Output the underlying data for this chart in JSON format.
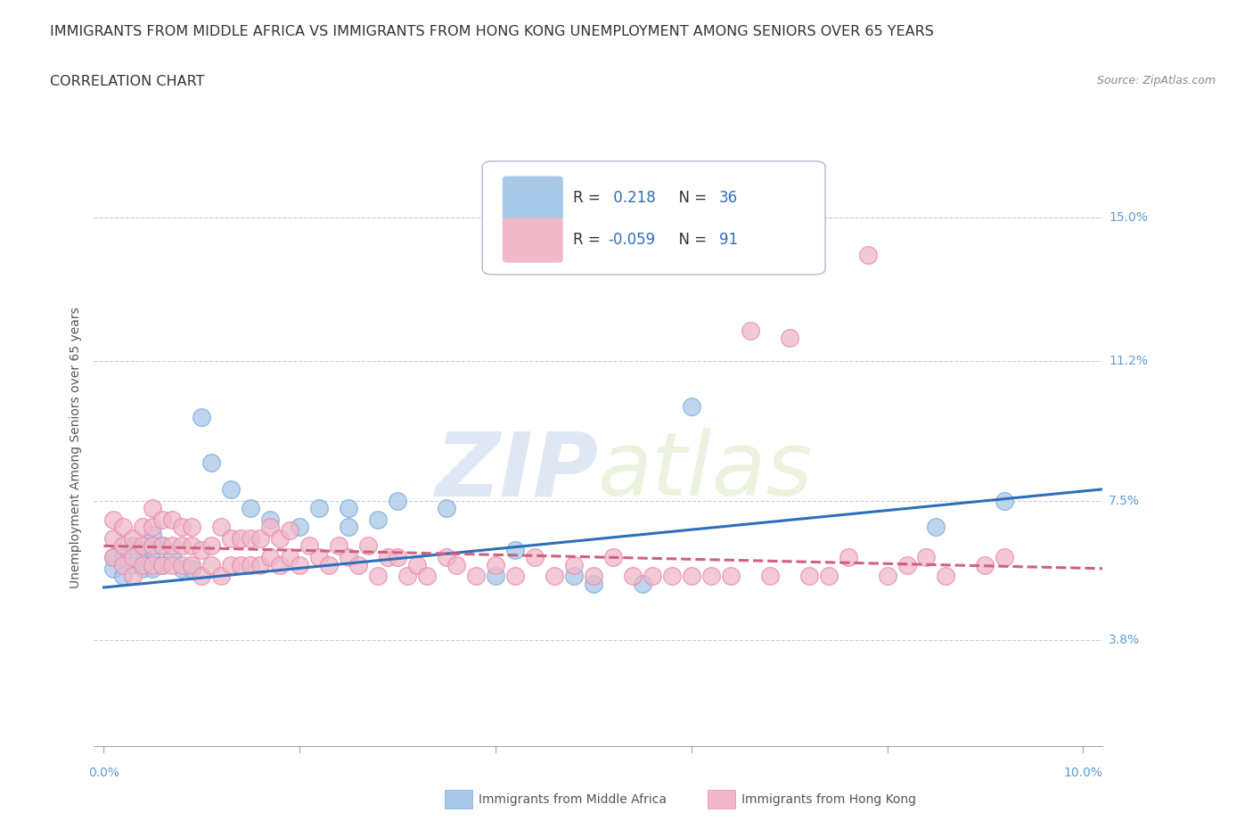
{
  "title_line1": "IMMIGRANTS FROM MIDDLE AFRICA VS IMMIGRANTS FROM HONG KONG UNEMPLOYMENT AMONG SENIORS OVER 65 YEARS",
  "title_line2": "CORRELATION CHART",
  "source_text": "Source: ZipAtlas.com",
  "ylabel": "Unemployment Among Seniors over 65 years",
  "xlim": [
    -0.001,
    0.102
  ],
  "ylim": [
    0.01,
    0.168
  ],
  "yticks": [
    0.038,
    0.075,
    0.112,
    0.15
  ],
  "ytick_labels": [
    "3.8%",
    "7.5%",
    "11.2%",
    "15.0%"
  ],
  "xticks": [
    0.0,
    0.02,
    0.04,
    0.06,
    0.08,
    0.1
  ],
  "xtick_labels": [
    "0.0%",
    "",
    "",
    "",
    "",
    "10.0%"
  ],
  "watermark_zip": "ZIP",
  "watermark_atlas": "atlas",
  "bg_color": "#ffffff",
  "grid_color": "#cccccc",
  "title_fontsize": 11.5,
  "axis_label_fontsize": 10,
  "tick_fontsize": 10,
  "right_label_color": "#5b9bd5",
  "series": [
    {
      "name": "Immigrants from Middle Africa",
      "color": "#a8c8e8",
      "edge_color": "#7aadda",
      "r": 0.218,
      "n": 36,
      "x": [
        0.001,
        0.001,
        0.002,
        0.002,
        0.003,
        0.003,
        0.004,
        0.004,
        0.005,
        0.005,
        0.005,
        0.006,
        0.006,
        0.007,
        0.008,
        0.009,
        0.01,
        0.011,
        0.013,
        0.015,
        0.017,
        0.02,
        0.022,
        0.025,
        0.025,
        0.028,
        0.03,
        0.035,
        0.04,
        0.042,
        0.048,
        0.05,
        0.055,
        0.06,
        0.085,
        0.092
      ],
      "y": [
        0.057,
        0.06,
        0.055,
        0.06,
        0.058,
        0.063,
        0.057,
        0.062,
        0.057,
        0.062,
        0.066,
        0.058,
        0.063,
        0.06,
        0.057,
        0.057,
        0.097,
        0.085,
        0.078,
        0.073,
        0.07,
        0.068,
        0.073,
        0.068,
        0.073,
        0.07,
        0.075,
        0.073,
        0.055,
        0.062,
        0.055,
        0.053,
        0.053,
        0.1,
        0.068,
        0.075
      ],
      "trend_x": [
        0.0,
        0.102
      ],
      "trend_y": [
        0.052,
        0.078
      ],
      "trend_color": "#2e6fba",
      "trend_style": "-"
    },
    {
      "name": "Immigrants from Hong Kong",
      "color": "#f0b8c8",
      "edge_color": "#e88aaa",
      "r": -0.059,
      "n": 91,
      "x": [
        0.001,
        0.001,
        0.001,
        0.002,
        0.002,
        0.002,
        0.003,
        0.003,
        0.003,
        0.004,
        0.004,
        0.004,
        0.005,
        0.005,
        0.005,
        0.005,
        0.006,
        0.006,
        0.006,
        0.007,
        0.007,
        0.007,
        0.008,
        0.008,
        0.008,
        0.009,
        0.009,
        0.009,
        0.01,
        0.01,
        0.011,
        0.011,
        0.012,
        0.012,
        0.013,
        0.013,
        0.014,
        0.014,
        0.015,
        0.015,
        0.016,
        0.016,
        0.017,
        0.017,
        0.018,
        0.018,
        0.019,
        0.019,
        0.02,
        0.021,
        0.022,
        0.023,
        0.024,
        0.025,
        0.026,
        0.027,
        0.028,
        0.029,
        0.03,
        0.031,
        0.032,
        0.033,
        0.035,
        0.036,
        0.038,
        0.04,
        0.042,
        0.044,
        0.046,
        0.048,
        0.05,
        0.052,
        0.054,
        0.056,
        0.058,
        0.06,
        0.062,
        0.064,
        0.066,
        0.068,
        0.07,
        0.072,
        0.074,
        0.076,
        0.078,
        0.08,
        0.082,
        0.084,
        0.086,
        0.09,
        0.092
      ],
      "y": [
        0.06,
        0.065,
        0.07,
        0.058,
        0.063,
        0.068,
        0.055,
        0.06,
        0.065,
        0.058,
        0.063,
        0.068,
        0.058,
        0.063,
        0.068,
        0.073,
        0.058,
        0.063,
        0.07,
        0.058,
        0.063,
        0.07,
        0.058,
        0.063,
        0.068,
        0.058,
        0.063,
        0.068,
        0.055,
        0.062,
        0.058,
        0.063,
        0.055,
        0.068,
        0.058,
        0.065,
        0.058,
        0.065,
        0.058,
        0.065,
        0.058,
        0.065,
        0.06,
        0.068,
        0.058,
        0.065,
        0.06,
        0.067,
        0.058,
        0.063,
        0.06,
        0.058,
        0.063,
        0.06,
        0.058,
        0.063,
        0.055,
        0.06,
        0.06,
        0.055,
        0.058,
        0.055,
        0.06,
        0.058,
        0.055,
        0.058,
        0.055,
        0.06,
        0.055,
        0.058,
        0.055,
        0.06,
        0.055,
        0.055,
        0.055,
        0.055,
        0.055,
        0.055,
        0.12,
        0.055,
        0.118,
        0.055,
        0.055,
        0.06,
        0.14,
        0.055,
        0.058,
        0.06,
        0.055,
        0.058,
        0.06
      ],
      "trend_x": [
        0.0,
        0.102
      ],
      "trend_y": [
        0.063,
        0.057
      ],
      "trend_color": "#d06080",
      "trend_style": "--"
    }
  ],
  "legend_r_color": "#2e6fba",
  "legend_n_color": "#2e6fba"
}
